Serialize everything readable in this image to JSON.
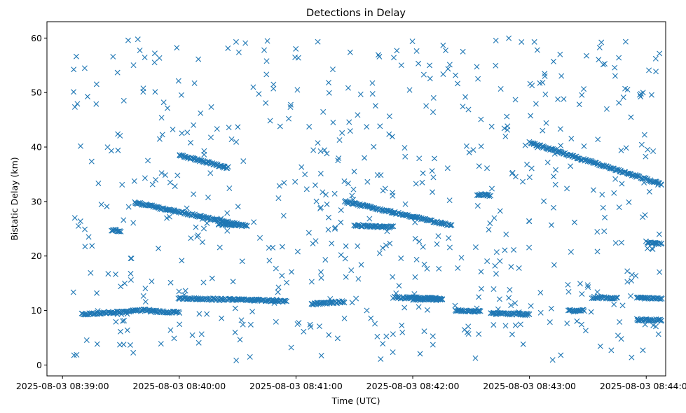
{
  "chart_data": {
    "type": "scatter",
    "title": "Detections in Delay",
    "xlabel": "Time (UTC)",
    "ylabel": "Bistatic Delay (km)",
    "marker": "x",
    "color": "#1f77b4",
    "x_unit": "UTC time",
    "xlim": [
      "2025-08-03 08:38:52",
      "2025-08-03 08:44:10"
    ],
    "ylim": [
      -2,
      63
    ],
    "x_ticks": [
      "2025-08-03 08:39:00",
      "2025-08-03 08:40:00",
      "2025-08-03 08:41:00",
      "2025-08-03 08:42:00",
      "2025-08-03 08:43:00",
      "2025-08-03 08:44:00"
    ],
    "y_ticks": [
      0,
      10,
      20,
      30,
      40,
      50,
      60
    ],
    "grid": false,
    "tracks": [
      {
        "from": "08:39:10",
        "to": "08:39:45",
        "delay_start": 9.3,
        "delay_end": 10.1
      },
      {
        "from": "08:39:45",
        "to": "08:40:00",
        "delay_start": 9.9,
        "delay_end": 9.6
      },
      {
        "from": "08:40:00",
        "to": "08:40:40",
        "delay_start": 12.2,
        "delay_end": 11.9
      },
      {
        "from": "08:40:40",
        "to": "08:40:55",
        "delay_start": 11.9,
        "delay_end": 11.7
      },
      {
        "from": "08:41:08",
        "to": "08:41:25",
        "delay_start": 11.2,
        "delay_end": 11.6
      },
      {
        "from": "08:41:50",
        "to": "08:42:15",
        "delay_start": 12.4,
        "delay_end": 12.2
      },
      {
        "from": "08:42:22",
        "to": "08:42:35",
        "delay_start": 10.0,
        "delay_end": 9.8
      },
      {
        "from": "08:42:40",
        "to": "08:43:00",
        "delay_start": 9.5,
        "delay_end": 9.3
      },
      {
        "from": "08:43:20",
        "to": "08:43:28",
        "delay_start": 9.9,
        "delay_end": 10.0
      },
      {
        "from": "08:43:32",
        "to": "08:43:45",
        "delay_start": 12.4,
        "delay_end": 12.3
      },
      {
        "from": "08:43:55",
        "to": "08:44:08",
        "delay_start": 8.3,
        "delay_end": 8.2
      },
      {
        "from": "08:43:55",
        "to": "08:44:08",
        "delay_start": 12.3,
        "delay_end": 12.2
      },
      {
        "from": "08:39:37",
        "to": "08:40:30",
        "delay_start": 29.8,
        "delay_end": 25.8
      },
      {
        "from": "08:40:00",
        "to": "08:40:25",
        "delay_start": 38.5,
        "delay_end": 36.2
      },
      {
        "from": "08:40:20",
        "to": "08:40:35",
        "delay_start": 25.8,
        "delay_end": 25.6
      },
      {
        "from": "08:41:25",
        "to": "08:42:20",
        "delay_start": 30.0,
        "delay_end": 25.6
      },
      {
        "from": "08:41:30",
        "to": "08:41:50",
        "delay_start": 25.6,
        "delay_end": 25.3
      },
      {
        "from": "08:42:33",
        "to": "08:42:40",
        "delay_start": 31.3,
        "delay_end": 31.1
      },
      {
        "from": "08:42:00",
        "to": "08:42:15",
        "delay_start": 12.1,
        "delay_end": 12.0
      },
      {
        "from": "08:43:00",
        "to": "08:44:08",
        "delay_start": 40.8,
        "delay_end": 33.2
      },
      {
        "from": "08:44:00",
        "to": "08:44:08",
        "delay_start": 22.6,
        "delay_end": 22.2
      },
      {
        "from": "08:39:25",
        "to": "08:39:30",
        "delay_start": 24.8,
        "delay_end": 24.5
      }
    ],
    "clutter": {
      "points": 600,
      "x_range": [
        "2025-08-03 08:39:05",
        "2025-08-03 08:44:08"
      ],
      "y_range": [
        0.5,
        60
      ]
    }
  }
}
